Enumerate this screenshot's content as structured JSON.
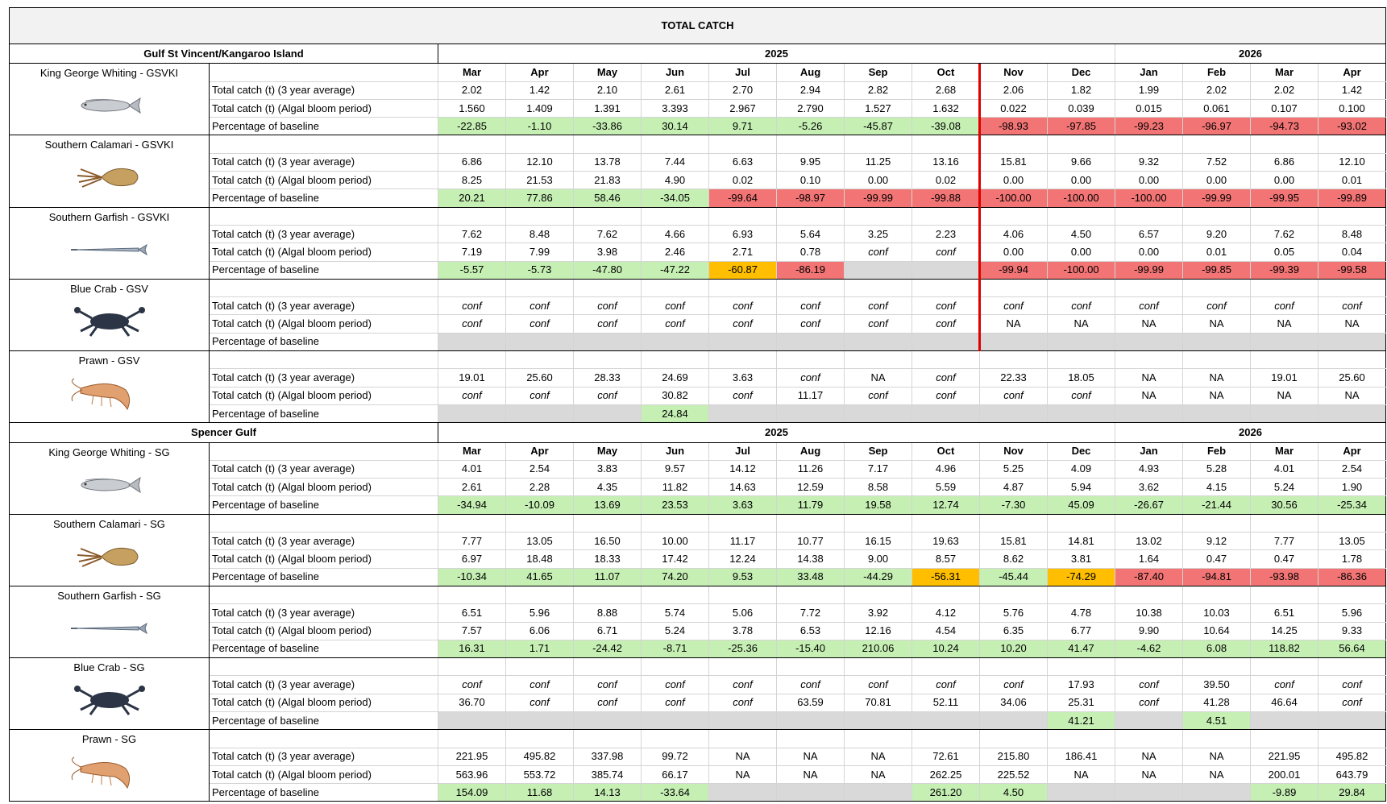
{
  "title": "TOTAL CATCH",
  "palette": {
    "g": "#c6efb4",
    "r": "#f27474",
    "o": "#ffbf00",
    "x": "#d9d9d9"
  },
  "regions": [
    {
      "name": "Gulf St Vincent/Kangaroo Island",
      "years": [
        {
          "year": "2025",
          "months": [
            "Mar",
            "Apr",
            "May",
            "Jun",
            "Jul",
            "Aug",
            "Sep",
            "Oct",
            "Nov",
            "Dec"
          ]
        },
        {
          "year": "2026",
          "months": [
            "Jan",
            "Feb",
            "Mar",
            "Apr"
          ]
        }
      ],
      "species": [
        {
          "name": "King George Whiting - GSVKI",
          "rows": [
            {
              "label": "Total catch (t) (3 year average)",
              "values": [
                "2.02",
                "1.42",
                "2.10",
                "2.61",
                "2.70",
                "2.94",
                "2.82",
                "2.68",
                "2.06",
                "1.82",
                "1.99",
                "2.02",
                "2.02",
                "1.42"
              ]
            },
            {
              "label": "Total catch (t) (Algal bloom period)",
              "values": [
                "1.560",
                "1.409",
                "1.391",
                "3.393",
                "2.967",
                "2.790",
                "1.527",
                "1.632",
                "0.022",
                "0.039",
                "0.015",
                "0.061",
                "0.107",
                "0.100"
              ]
            },
            {
              "label": "Percentage of baseline",
              "values": [
                "-22.85",
                "-1.10",
                "-33.86",
                "30.14",
                "9.71",
                "-5.26",
                "-45.87",
                "-39.08",
                "-98.93",
                "-97.85",
                "-99.23",
                "-96.97",
                "-94.73",
                "-93.02"
              ],
              "fills": "ggggggggrrrrrr"
            }
          ]
        },
        {
          "name": "Southern Calamari - GSVKI",
          "rows": [
            {
              "label": "Total catch (t) (3 year average)",
              "values": [
                "6.86",
                "12.10",
                "13.78",
                "7.44",
                "6.63",
                "9.95",
                "11.25",
                "13.16",
                "15.81",
                "9.66",
                "9.32",
                "7.52",
                "6.86",
                "12.10"
              ]
            },
            {
              "label": "Total catch (t) (Algal bloom period)",
              "values": [
                "8.25",
                "21.53",
                "21.83",
                "4.90",
                "0.02",
                "0.10",
                "0.00",
                "0.02",
                "0.00",
                "0.00",
                "0.00",
                "0.00",
                "0.00",
                "0.01"
              ]
            },
            {
              "label": "Percentage of baseline",
              "values": [
                "20.21",
                "77.86",
                "58.46",
                "-34.05",
                "-99.64",
                "-98.97",
                "-99.99",
                "-99.88",
                "-100.00",
                "-100.00",
                "-100.00",
                "-99.99",
                "-99.95",
                "-99.89"
              ],
              "fills": "ggggrrrrrrrrrr"
            }
          ]
        },
        {
          "name": "Southern Garfish - GSVKI",
          "rows": [
            {
              "label": "Total catch (t) (3 year average)",
              "values": [
                "7.62",
                "8.48",
                "7.62",
                "4.66",
                "6.93",
                "5.64",
                "3.25",
                "2.23",
                "4.06",
                "4.50",
                "6.57",
                "9.20",
                "7.62",
                "8.48"
              ]
            },
            {
              "label": "Total catch (t) (Algal bloom period)",
              "values": [
                "7.19",
                "7.99",
                "3.98",
                "2.46",
                "2.71",
                "0.78",
                "conf",
                "conf",
                "0.00",
                "0.00",
                "0.00",
                "0.01",
                "0.05",
                "0.04"
              ]
            },
            {
              "label": "Percentage of baseline",
              "values": [
                "-5.57",
                "-5.73",
                "-47.80",
                "-47.22",
                "-60.87",
                "-86.19",
                null,
                null,
                "-99.94",
                "-100.00",
                "-99.99",
                "-99.85",
                "-99.39",
                "-99.58"
              ],
              "fills": "ggggorxxrrrrrr"
            }
          ]
        },
        {
          "name": "Blue Crab - GSV",
          "rows": [
            {
              "label": "Total catch (t) (3 year average)",
              "values": [
                "conf",
                "conf",
                "conf",
                "conf",
                "conf",
                "conf",
                "conf",
                "conf",
                "conf",
                "conf",
                "conf",
                "conf",
                "conf",
                "conf"
              ]
            },
            {
              "label": "Total catch (t) (Algal bloom period)",
              "values": [
                "conf",
                "conf",
                "conf",
                "conf",
                "conf",
                "conf",
                "conf",
                "conf",
                "NA",
                "NA",
                "NA",
                "NA",
                "NA",
                "NA"
              ]
            },
            {
              "label": "Percentage of baseline",
              "values": [
                null,
                null,
                null,
                null,
                null,
                null,
                null,
                null,
                null,
                null,
                null,
                null,
                null,
                null
              ],
              "fills": "xxxxxxxxxxxxxx"
            }
          ]
        },
        {
          "name": "Prawn - GSV",
          "rows": [
            {
              "label": "Total catch (t) (3 year average)",
              "values": [
                "19.01",
                "25.60",
                "28.33",
                "24.69",
                "3.63",
                "conf",
                "NA",
                "conf",
                "22.33",
                "18.05",
                "NA",
                "NA",
                "19.01",
                "25.60"
              ]
            },
            {
              "label": "Total catch (t) (Algal bloom period)",
              "values": [
                "conf",
                "conf",
                "conf",
                "30.82",
                "conf",
                "11.17",
                "conf",
                "conf",
                "conf",
                "conf",
                "NA",
                "NA",
                "NA",
                "NA"
              ]
            },
            {
              "label": "Percentage of baseline",
              "values": [
                null,
                null,
                null,
                "24.84",
                null,
                null,
                null,
                null,
                null,
                null,
                null,
                null,
                null,
                null
              ],
              "fills": "xxxgxxxxxxxxxx"
            }
          ]
        }
      ]
    },
    {
      "name": "Spencer Gulf",
      "years": [
        {
          "year": "2025",
          "months": [
            "Mar",
            "Apr",
            "May",
            "Jun",
            "Jul",
            "Aug",
            "Sep",
            "Oct",
            "Nov",
            "Dec"
          ]
        },
        {
          "year": "2026",
          "months": [
            "Jan",
            "Feb",
            "Mar",
            "Apr"
          ]
        }
      ],
      "species": [
        {
          "name": "King George Whiting - SG",
          "rows": [
            {
              "label": "Total catch (t) (3 year average)",
              "values": [
                "4.01",
                "2.54",
                "3.83",
                "9.57",
                "14.12",
                "11.26",
                "7.17",
                "4.96",
                "5.25",
                "4.09",
                "4.93",
                "5.28",
                "4.01",
                "2.54"
              ]
            },
            {
              "label": "Total catch (t) (Algal bloom period)",
              "values": [
                "2.61",
                "2.28",
                "4.35",
                "11.82",
                "14.63",
                "12.59",
                "8.58",
                "5.59",
                "4.87",
                "5.94",
                "3.62",
                "4.15",
                "5.24",
                "1.90"
              ]
            },
            {
              "label": "Percentage of baseline",
              "values": [
                "-34.94",
                "-10.09",
                "13.69",
                "23.53",
                "3.63",
                "11.79",
                "19.58",
                "12.74",
                "-7.30",
                "45.09",
                "-26.67",
                "-21.44",
                "30.56",
                "-25.34"
              ],
              "fills": "gggggggggggggg"
            }
          ]
        },
        {
          "name": "Southern Calamari - SG",
          "rows": [
            {
              "label": "Total catch (t) (3 year average)",
              "values": [
                "7.77",
                "13.05",
                "16.50",
                "10.00",
                "11.17",
                "10.77",
                "16.15",
                "19.63",
                "15.81",
                "14.81",
                "13.02",
                "9.12",
                "7.77",
                "13.05"
              ]
            },
            {
              "label": "Total catch (t) (Algal bloom period)",
              "values": [
                "6.97",
                "18.48",
                "18.33",
                "17.42",
                "12.24",
                "14.38",
                "9.00",
                "8.57",
                "8.62",
                "3.81",
                "1.64",
                "0.47",
                "0.47",
                "1.78"
              ]
            },
            {
              "label": "Percentage of baseline",
              "values": [
                "-10.34",
                "41.65",
                "11.07",
                "74.20",
                "9.53",
                "33.48",
                "-44.29",
                "-56.31",
                "-45.44",
                "-74.29",
                "-87.40",
                "-94.81",
                "-93.98",
                "-86.36"
              ],
              "fills": "gggggggogorrrr"
            }
          ]
        },
        {
          "name": "Southern Garfish - SG",
          "rows": [
            {
              "label": "Total catch (t) (3 year average)",
              "values": [
                "6.51",
                "5.96",
                "8.88",
                "5.74",
                "5.06",
                "7.72",
                "3.92",
                "4.12",
                "5.76",
                "4.78",
                "10.38",
                "10.03",
                "6.51",
                "5.96"
              ]
            },
            {
              "label": "Total catch (t) (Algal bloom period)",
              "values": [
                "7.57",
                "6.06",
                "6.71",
                "5.24",
                "3.78",
                "6.53",
                "12.16",
                "4.54",
                "6.35",
                "6.77",
                "9.90",
                "10.64",
                "14.25",
                "9.33"
              ]
            },
            {
              "label": "Percentage of baseline",
              "values": [
                "16.31",
                "1.71",
                "-24.42",
                "-8.71",
                "-25.36",
                "-15.40",
                "210.06",
                "10.24",
                "10.20",
                "41.47",
                "-4.62",
                "6.08",
                "118.82",
                "56.64"
              ],
              "fills": "gggggggggggggg"
            }
          ]
        },
        {
          "name": "Blue Crab - SG",
          "rows": [
            {
              "label": "Total catch (t) (3 year average)",
              "values": [
                "conf",
                "conf",
                "conf",
                "conf",
                "conf",
                "conf",
                "conf",
                "conf",
                "conf",
                "17.93",
                "conf",
                "39.50",
                "conf",
                "conf"
              ]
            },
            {
              "label": "Total catch (t) (Algal bloom period)",
              "values": [
                "36.70",
                "conf",
                "conf",
                "conf",
                "conf",
                "63.59",
                "70.81",
                "52.11",
                "34.06",
                "25.31",
                "conf",
                "41.28",
                "46.64",
                "conf"
              ]
            },
            {
              "label": "Percentage of baseline",
              "values": [
                null,
                null,
                null,
                null,
                null,
                null,
                null,
                null,
                null,
                "41.21",
                null,
                "4.51",
                null,
                null
              ],
              "fills": "xxxxxxxxxgxgxx"
            }
          ]
        },
        {
          "name": "Prawn - SG",
          "rows": [
            {
              "label": "Total catch (t) (3 year average)",
              "values": [
                "221.95",
                "495.82",
                "337.98",
                "99.72",
                "NA",
                "NA",
                "NA",
                "72.61",
                "215.80",
                "186.41",
                "NA",
                "NA",
                "221.95",
                "495.82"
              ]
            },
            {
              "label": "Total catch (t) (Algal bloom period)",
              "values": [
                "563.96",
                "553.72",
                "385.74",
                "66.17",
                "NA",
                "NA",
                "NA",
                "262.25",
                "225.52",
                "NA",
                "NA",
                "NA",
                "200.01",
                "643.79"
              ]
            },
            {
              "label": "Percentage of baseline",
              "values": [
                "154.09",
                "11.68",
                "14.13",
                "-33.64",
                null,
                null,
                null,
                "261.20",
                "4.50",
                null,
                null,
                null,
                "-9.89",
                "29.84"
              ],
              "fills": "ggggxxxggxxxgg"
            }
          ]
        }
      ]
    }
  ]
}
